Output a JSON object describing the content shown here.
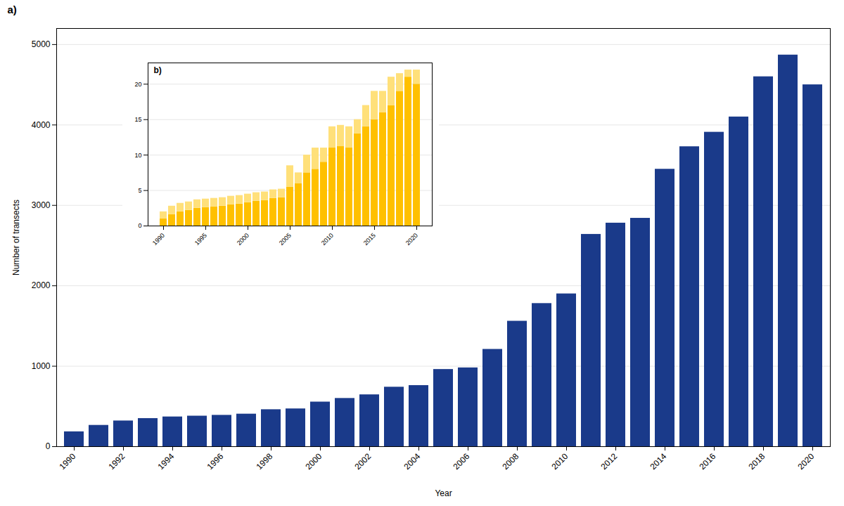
{
  "chart_data": [
    {
      "type": "bar",
      "title": "a)",
      "xlabel": "Year",
      "ylabel": "Number of transects",
      "categories": [
        "1990",
        null,
        "1992",
        null,
        "1994",
        null,
        "1996",
        null,
        "1998",
        null,
        "2000",
        null,
        "2002",
        null,
        "2004",
        null,
        "2006",
        null,
        "2008",
        null,
        "2010",
        null,
        "2012",
        null,
        "2014",
        null,
        "2016",
        null,
        "2018",
        null,
        "2020"
      ],
      "values": [
        185,
        265,
        320,
        350,
        370,
        380,
        390,
        405,
        460,
        470,
        555,
        600,
        645,
        740,
        760,
        960,
        980,
        1210,
        1560,
        1780,
        1900,
        2640,
        2780,
        2840,
        3450,
        3730,
        3910,
        4100,
        4600,
        4870,
        4500
      ],
      "color": "#1a3a8a",
      "ylim": [
        0,
        5200
      ],
      "yticks": [
        0,
        1000,
        2000,
        3000,
        4000,
        5000
      ],
      "grid": true
    },
    {
      "type": "bar",
      "title": "b)",
      "stacked": true,
      "categories": [
        "1990",
        null,
        null,
        null,
        null,
        "1995",
        null,
        null,
        null,
        null,
        "2000",
        null,
        null,
        null,
        null,
        "2005",
        null,
        null,
        null,
        null,
        "2010",
        null,
        null,
        null,
        null,
        "2015",
        null,
        null,
        null,
        null,
        "2020"
      ],
      "series": [
        {
          "color": "#FFC000",
          "values": [
            1.0,
            1.6,
            2.0,
            2.2,
            2.5,
            2.6,
            2.7,
            2.8,
            3.0,
            3.1,
            3.3,
            3.5,
            3.6,
            3.9,
            4.0,
            5.5,
            6.0,
            7.5,
            8.0,
            9.0,
            11.0,
            11.2,
            11.0,
            13.0,
            14.0,
            15.0,
            16.0,
            17.0,
            19.0,
            21.0,
            20.0
          ]
        },
        {
          "color": "#FFE07A",
          "values": [
            1.0,
            1.2,
            1.2,
            1.2,
            1.2,
            1.2,
            1.2,
            1.2,
            1.2,
            1.2,
            1.2,
            1.2,
            1.2,
            1.2,
            1.2,
            3.0,
            1.5,
            2.5,
            3.0,
            2.0,
            3.0,
            3.0,
            3.0,
            2.0,
            3.0,
            4.0,
            3.0,
            4.0,
            2.5,
            1.0,
            2.0
          ]
        }
      ],
      "ylim": [
        0,
        23
      ],
      "yticks": [
        0,
        5,
        10,
        15,
        20
      ],
      "grid": true
    }
  ]
}
